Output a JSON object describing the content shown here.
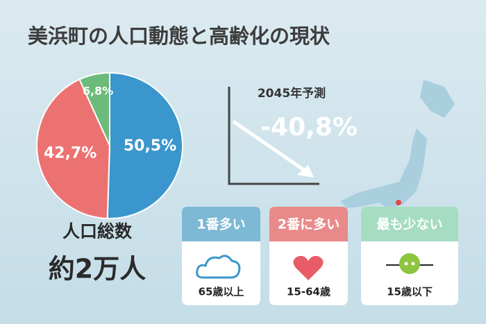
{
  "title": "美浜町の人口動態と高齢化の現状",
  "chart_data": {
    "type": "pie",
    "values": [
      50.5,
      42.7,
      6.8
    ],
    "value_labels": [
      "50,5%",
      "42,7%",
      "6,8%"
    ],
    "colors": [
      "#3a96cc",
      "#ec7272",
      "#6cbb7a"
    ]
  },
  "total": {
    "label": "人口総数",
    "value": "約2万人"
  },
  "forecast": {
    "label": "2045年予測",
    "value": "-40,8%"
  },
  "cards": [
    {
      "rank": "1番多い",
      "group": "65歳以上"
    },
    {
      "rank": "2番に多い",
      "group": "15-64歳"
    },
    {
      "rank": "最も少ない",
      "group": "15歳以下"
    }
  ]
}
